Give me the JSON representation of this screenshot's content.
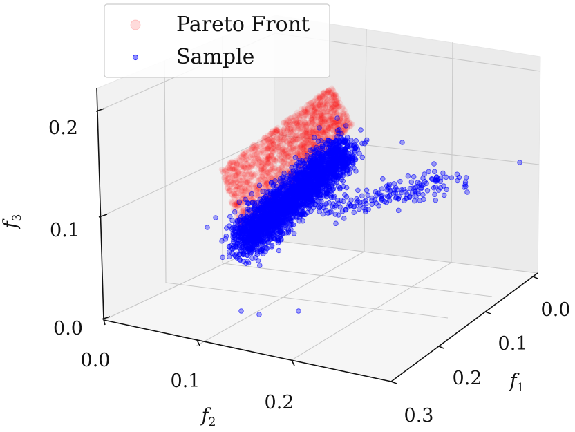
{
  "chart_data": {
    "type": "scatter",
    "projection": "3d",
    "axes": {
      "x": {
        "label": "f",
        "label_sub": "1",
        "lim": [
          0.0,
          0.3
        ],
        "ticks": [
          0.0,
          0.1,
          0.2,
          0.3
        ],
        "tick_labels": [
          "0.0",
          "0.1",
          "0.2",
          "0.3"
        ]
      },
      "y": {
        "label": "f",
        "label_sub": "2",
        "lim": [
          0.0,
          0.3
        ],
        "ticks": [
          0.0,
          0.1,
          0.2
        ],
        "tick_labels": [
          "0.0",
          "0.1",
          "0.2"
        ]
      },
      "z": {
        "label": "f",
        "label_sub": "3",
        "lim": [
          0.0,
          0.24
        ],
        "ticks": [
          0.0,
          0.1,
          0.2
        ],
        "tick_labels": [
          "0.0",
          "0.1",
          "0.2"
        ]
      }
    },
    "grid": true,
    "legend": {
      "placement": "upper-left",
      "entries": [
        {
          "label": "Pareto Front",
          "color": "#ff0000",
          "alpha": 0.12
        },
        {
          "label": "Sample",
          "color": "#0000ff",
          "alpha": 0.45
        }
      ]
    },
    "series": [
      {
        "name": "Pareto Front",
        "color": "#ff0000",
        "marker": "o",
        "description": "dense surface of points where f1 + f2 + f3 ≈ 0.25, f1 0–0.1, f2 0–0.14, f3 0.05–0.23",
        "anchor_points": [
          [
            0.0,
            0.0,
            0.23
          ],
          [
            0.0,
            0.05,
            0.2
          ],
          [
            0.0,
            0.1,
            0.15
          ],
          [
            0.0,
            0.14,
            0.11
          ],
          [
            0.05,
            0.0,
            0.2
          ],
          [
            0.05,
            0.05,
            0.15
          ],
          [
            0.05,
            0.1,
            0.1
          ],
          [
            0.1,
            0.0,
            0.15
          ],
          [
            0.1,
            0.05,
            0.1
          ],
          [
            0.1,
            0.1,
            0.05
          ]
        ]
      },
      {
        "name": "Sample",
        "color": "#0000ff",
        "marker": "o",
        "description": "dense cloud above the Pareto front, f1 0–0.25, f2 0.02–0.2, f3 0.03–0.2",
        "anchor_points": [
          [
            0.05,
            0.1,
            0.1
          ],
          [
            0.1,
            0.08,
            0.12
          ],
          [
            0.15,
            0.06,
            0.1
          ],
          [
            0.2,
            0.04,
            0.09
          ],
          [
            0.08,
            0.15,
            0.06
          ],
          [
            0.12,
            0.12,
            0.08
          ],
          [
            0.03,
            0.12,
            0.12
          ],
          [
            0.22,
            0.02,
            0.13
          ],
          [
            0.25,
            0.03,
            0.15
          ],
          [
            0.18,
            0.1,
            0.06
          ],
          [
            0.06,
            0.18,
            0.04
          ]
        ]
      }
    ]
  }
}
